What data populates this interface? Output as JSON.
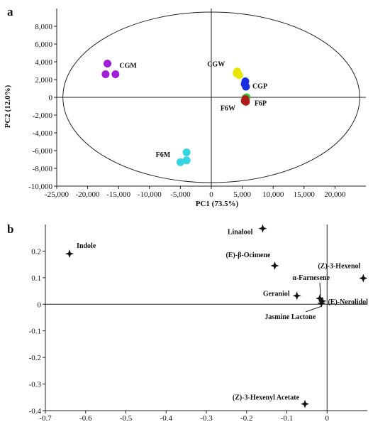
{
  "chart_data": [
    {
      "type": "scatter",
      "panel_label": "a",
      "xlabel": "PC1 (73.5%)",
      "ylabel": "PC2 (12.0%)",
      "xlim": [
        -25000,
        25000
      ],
      "ylim": [
        -10000,
        10000
      ],
      "xticks": [
        -25000,
        -20000,
        -15000,
        -10000,
        -5000,
        0,
        5000,
        10000,
        15000,
        20000
      ],
      "yticks": [
        -10000,
        -8000,
        -6000,
        -4000,
        -2000,
        0,
        2000,
        4000,
        6000,
        8000
      ],
      "xtick_labels": [
        "-25,000",
        "-20,000",
        "-15,000",
        "-10,000",
        "-5,000",
        "0",
        "5,000",
        "10,000",
        "15,000",
        "20,000"
      ],
      "ytick_labels": [
        "-10,000",
        "-8,000",
        "-6,000",
        "-4,000",
        "-2,000",
        "0",
        "2,000",
        "4,000",
        "6,000",
        "8,000"
      ],
      "ellipse": {
        "cx": 0,
        "cy": 0,
        "rx": 24000,
        "ry": 9600
      },
      "series": [
        {
          "name": "CGM",
          "color": "#a020d8",
          "points": [
            [
              -16800,
              3800
            ],
            [
              -17100,
              2600
            ],
            [
              -15500,
              2600
            ]
          ]
        },
        {
          "name": "CGW",
          "color": "#e6e600",
          "points": [
            [
              4200,
              2900
            ],
            [
              4500,
              2500
            ],
            [
              4100,
              2700
            ]
          ]
        },
        {
          "name": "CGP",
          "color": "#1a2fe0",
          "points": [
            [
              5500,
              1800
            ],
            [
              5600,
              1200
            ],
            [
              5400,
              1500
            ]
          ]
        },
        {
          "name": "F6P",
          "color": "#2ecc2e",
          "points": [
            [
              5700,
              0
            ],
            [
              5500,
              -100
            ],
            [
              5600,
              -300
            ]
          ]
        },
        {
          "name": "F6W",
          "color": "#b01c1c",
          "points": [
            [
              5400,
              -400
            ],
            [
              5600,
              -500
            ],
            [
              5500,
              -200
            ]
          ]
        },
        {
          "name": "F6M",
          "color": "#33d6e0",
          "points": [
            [
              -4000,
              -6200
            ],
            [
              -4000,
              -7100
            ],
            [
              -5000,
              -7300
            ]
          ]
        }
      ]
    },
    {
      "type": "scatter",
      "panel_label": "b",
      "xlim": [
        -0.7,
        0.1
      ],
      "ylim": [
        -0.4,
        0.3
      ],
      "xticks": [
        -0.7,
        -0.6,
        -0.5,
        -0.4,
        -0.3,
        -0.2,
        -0.1,
        0
      ],
      "yticks": [
        -0.4,
        -0.3,
        -0.2,
        -0.1,
        0,
        0.1,
        0.2
      ],
      "xtick_labels": [
        "-0.7",
        "-0.6",
        "-0.5",
        "-0.4",
        "-0.3",
        "-0.2",
        "-0.1",
        "0"
      ],
      "ytick_labels": [
        "-0.4",
        "-0.3",
        "-0.2",
        "-0.1",
        "0",
        "0.1",
        "0.2"
      ],
      "points": [
        {
          "label": "Indole",
          "x": -0.64,
          "y": 0.19
        },
        {
          "label": "Linalool",
          "x": -0.16,
          "y": 0.285
        },
        {
          "label": "(E)-β-Ocimene",
          "x": -0.13,
          "y": 0.145
        },
        {
          "label": "(Z)-3-Hexenol",
          "x": 0.09,
          "y": 0.098
        },
        {
          "label": "α-Farnesene",
          "x": -0.018,
          "y": 0.022
        },
        {
          "label": "Geraniol",
          "x": -0.075,
          "y": 0.032
        },
        {
          "label": "(E)-Nerolidol",
          "x": -0.012,
          "y": 0.012
        },
        {
          "label": "Jasmine Lactone",
          "x": -0.014,
          "y": 0.004
        },
        {
          "label": "(Z)-3-Hexenyl Acetate",
          "x": -0.055,
          "y": -0.375
        }
      ]
    }
  ]
}
